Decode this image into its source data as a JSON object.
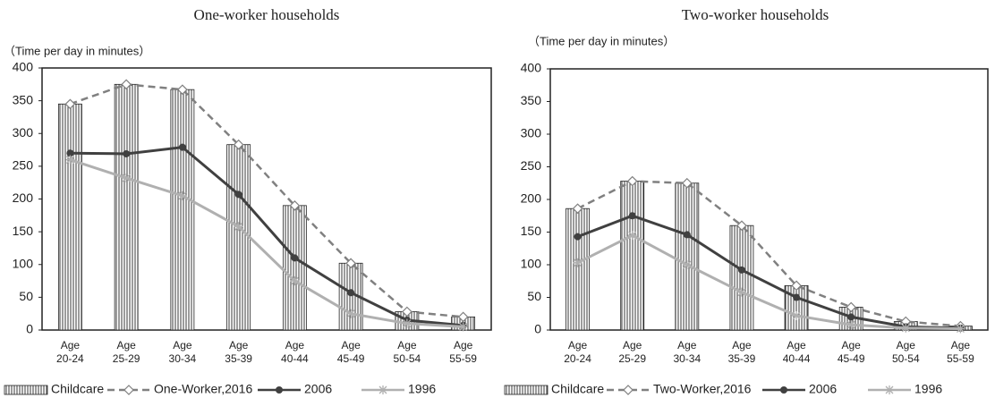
{
  "chart_data": [
    {
      "type": "combo",
      "title": "One-worker households",
      "y_label": "（Time per day in minutes）",
      "categories": [
        [
          "Age",
          "20-24"
        ],
        [
          "Age",
          "25-29"
        ],
        [
          "Age",
          "30-34"
        ],
        [
          "Age",
          "35-39"
        ],
        [
          "Age",
          "40-44"
        ],
        [
          "Age",
          "45-49"
        ],
        [
          "Age",
          "50-54"
        ],
        [
          "Age",
          "55-59"
        ]
      ],
      "ylim": [
        0,
        400
      ],
      "yticks": [
        0,
        50,
        100,
        150,
        200,
        250,
        300,
        350,
        400
      ],
      "legend": "bottom",
      "series": [
        {
          "name": "Childcare",
          "kind": "bar",
          "color": "#222222",
          "values": [
            345,
            375,
            367,
            283,
            190,
            102,
            28,
            20
          ]
        },
        {
          "name": "One-Worker,2016",
          "kind": "line",
          "dash": true,
          "marker": "diamond",
          "color": "#808080",
          "values": [
            345,
            375,
            367,
            283,
            190,
            102,
            28,
            20
          ]
        },
        {
          "name": "2006",
          "kind": "line",
          "marker": "circle",
          "color": "#404040",
          "values": [
            270,
            269,
            279,
            207,
            110,
            57,
            15,
            7
          ]
        },
        {
          "name": "1996",
          "kind": "line",
          "marker": "star",
          "color": "#b0b0b0",
          "values": [
            260,
            232,
            205,
            158,
            75,
            25,
            10,
            5
          ]
        }
      ]
    },
    {
      "type": "combo",
      "title": "Two-worker households",
      "y_label": "（Time per day in minutes）",
      "categories": [
        [
          "Age",
          "20-24"
        ],
        [
          "Age",
          "25-29"
        ],
        [
          "Age",
          "30-34"
        ],
        [
          "Age",
          "35-39"
        ],
        [
          "Age",
          "40-44"
        ],
        [
          "Age",
          "45-49"
        ],
        [
          "Age",
          "50-54"
        ],
        [
          "Age",
          "55-59"
        ]
      ],
      "ylim": [
        0,
        400
      ],
      "yticks": [
        0,
        50,
        100,
        150,
        200,
        250,
        300,
        350,
        400
      ],
      "legend": "bottom",
      "series": [
        {
          "name": "Childcare",
          "kind": "bar",
          "color": "#222222",
          "values": [
            186,
            228,
            225,
            160,
            68,
            35,
            13,
            6
          ]
        },
        {
          "name": "Two-Worker,2016",
          "kind": "line",
          "dash": true,
          "marker": "diamond",
          "color": "#808080",
          "values": [
            186,
            228,
            225,
            160,
            68,
            35,
            13,
            6
          ]
        },
        {
          "name": "2006",
          "kind": "line",
          "marker": "circle",
          "color": "#404040",
          "values": [
            143,
            175,
            146,
            92,
            50,
            20,
            5,
            3
          ]
        },
        {
          "name": "1996",
          "kind": "line",
          "marker": "star",
          "color": "#b0b0b0",
          "values": [
            103,
            145,
            100,
            58,
            22,
            8,
            3,
            2
          ]
        }
      ]
    }
  ]
}
